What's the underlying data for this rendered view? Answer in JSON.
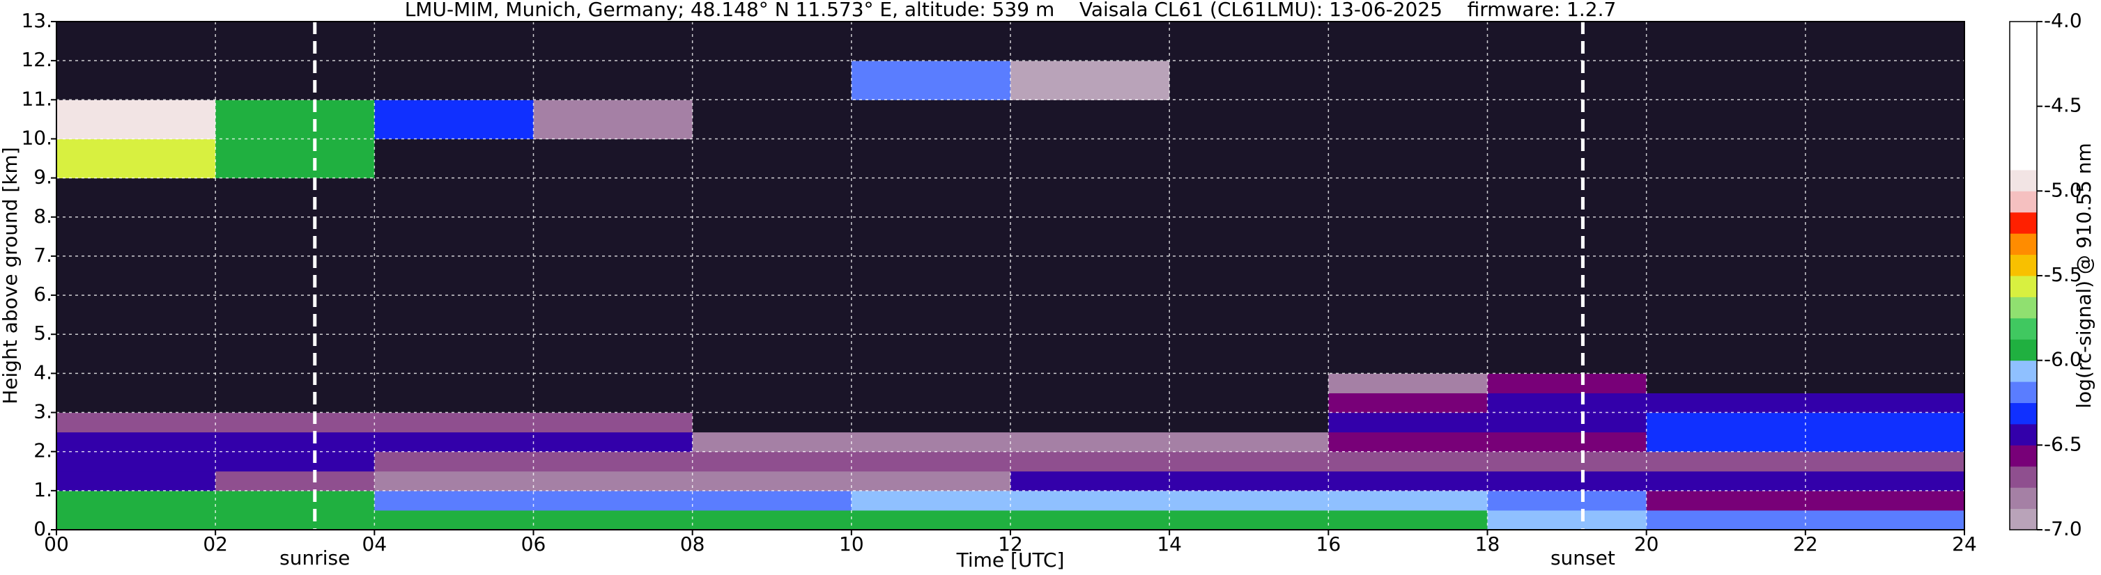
{
  "chart_data": {
    "type": "heatmap",
    "title": "LMU-MIM, Munich, Germany; 48.148° N 11.573° E, altitude: 539 m    Vaisala CL61 (CL61LMU): 13-06-2025    firmware: 1.2.7",
    "x_label": "Time [UTC]",
    "y_label": "Height above ground [km]",
    "x_bins": [
      0,
      2,
      4,
      6,
      8,
      10,
      12,
      14,
      16,
      18,
      20,
      22,
      24
    ],
    "y_bins": [
      0,
      0.5,
      1,
      1.5,
      2,
      2.5,
      3,
      3.5,
      4,
      6,
      9,
      10,
      11,
      12,
      13
    ],
    "values": [
      [
        -6.0,
        -6.0,
        -6.0,
        -6.0,
        -5.9,
        -5.9,
        -5.9,
        -5.9,
        -5.9,
        -6.1,
        -6.2,
        -6.2
      ],
      [
        -6.0,
        -6.0,
        -6.2,
        -6.2,
        -6.2,
        -6.1,
        -6.1,
        -6.1,
        -6.1,
        -6.2,
        -6.6,
        -6.6
      ],
      [
        -6.4,
        -6.7,
        -6.8,
        -6.8,
        -6.8,
        -6.8,
        -6.5,
        -6.5,
        -6.5,
        -6.5,
        -6.5,
        -6.5
      ],
      [
        -6.4,
        -6.4,
        -6.7,
        -6.7,
        -6.7,
        -6.7,
        -6.7,
        -6.7,
        -6.7,
        -6.7,
        -6.7,
        -6.7
      ],
      [
        -6.5,
        -6.5,
        -6.5,
        -6.5,
        -6.8,
        -6.8,
        -6.8,
        -6.8,
        -6.6,
        -6.6,
        -6.3,
        -6.3
      ],
      [
        -6.7,
        -6.7,
        -6.7,
        -6.7,
        -7.2,
        -7.2,
        -7.2,
        -7.2,
        -6.5,
        -6.4,
        -6.3,
        -6.3
      ],
      [
        -7.3,
        -7.3,
        -7.3,
        -7.3,
        -7.3,
        -7.3,
        -7.3,
        -7.3,
        -6.6,
        -6.4,
        -6.4,
        -6.4
      ],
      [
        -7.4,
        -7.4,
        -7.4,
        -7.4,
        -7.4,
        -7.4,
        -7.4,
        -7.4,
        -6.8,
        -6.6,
        -7.2,
        -7.2
      ],
      [
        -7.5,
        -7.5,
        -7.5,
        -7.5,
        -7.5,
        -7.5,
        -7.5,
        -7.5,
        -7.5,
        -7.5,
        -7.5,
        -7.5
      ],
      [
        -7.5,
        -7.5,
        -7.5,
        -7.5,
        -7.5,
        -7.5,
        -7.5,
        -7.5,
        -7.5,
        -7.5,
        -7.5,
        -7.5
      ],
      [
        -5.6,
        -6.0,
        -7.5,
        -7.5,
        -7.5,
        -7.5,
        -7.5,
        -7.5,
        -7.5,
        -7.5,
        -7.5,
        -7.5
      ],
      [
        -5.0,
        -5.9,
        -6.3,
        -6.8,
        -7.5,
        -7.5,
        -7.5,
        -7.5,
        -7.5,
        -7.5,
        -7.5,
        -7.5
      ],
      [
        -7.5,
        -7.5,
        -7.5,
        -7.5,
        -7.5,
        -6.2,
        -6.9,
        -7.5,
        -7.5,
        -7.5,
        -7.5,
        -7.5
      ],
      [
        -7.5,
        -7.5,
        -7.5,
        -7.5,
        -7.5,
        -7.5,
        -7.5,
        -7.5,
        -7.5,
        -7.5,
        -7.5,
        -7.5
      ]
    ],
    "xlim": [
      0,
      24
    ],
    "ylim": [
      0,
      13
    ],
    "xticks": [
      {
        "value": 0,
        "label": "00"
      },
      {
        "value": 2,
        "label": "02"
      },
      {
        "value": 4,
        "label": "04"
      },
      {
        "value": 6,
        "label": "06"
      },
      {
        "value": 8,
        "label": "08"
      },
      10,
      12,
      14,
      16,
      18,
      20,
      22,
      24
    ],
    "yticks": [
      {
        "value": 0,
        "label": "0."
      },
      {
        "value": 1,
        "label": "1."
      },
      {
        "value": 2,
        "label": "2."
      },
      {
        "value": 3,
        "label": "3."
      },
      {
        "value": 4,
        "label": "4."
      },
      {
        "value": 5,
        "label": "5."
      },
      {
        "value": 6,
        "label": "6."
      },
      {
        "value": 7,
        "label": "7."
      },
      {
        "value": 8,
        "label": "8."
      },
      {
        "value": 9,
        "label": "9."
      },
      {
        "value": 10,
        "label": "10."
      },
      {
        "value": 11,
        "label": "11."
      },
      {
        "value": 12,
        "label": "12."
      },
      {
        "value": 13,
        "label": "13."
      }
    ],
    "grid": true,
    "vlines": [
      {
        "x": 3.25,
        "label": "sunrise"
      },
      {
        "x": 19.2,
        "label": "sunset"
      }
    ],
    "colorbar": {
      "label": "log(rc-signal) @ 910.55 nm",
      "clim": [
        -7,
        -4
      ],
      "ticks": [
        {
          "value": -7,
          "label": "-7.0"
        },
        -6.5,
        {
          "value": -6,
          "label": "-6.0"
        },
        -5.5,
        {
          "value": -5,
          "label": "-5.0"
        },
        -4.5,
        {
          "value": -4,
          "label": "-4.0"
        }
      ],
      "colors": [
        "#b9a3b9",
        "#a580a5",
        "#8f4f8f",
        "#780078",
        "#3300aa",
        "#1030ff",
        "#5a7dff",
        "#8fc0ff",
        "#20b040",
        "#40c860",
        "#90e070",
        "#d8f040",
        "#f8c000",
        "#ff8c00",
        "#ff2000",
        "#f5c0c0",
        "#f2e4e4",
        "#ffffff",
        "#ffffff",
        "#ffffff",
        "#ffffff",
        "#ffffff",
        "#ffffff",
        "#ffffff"
      ],
      "under_color": "#1a1428"
    }
  }
}
